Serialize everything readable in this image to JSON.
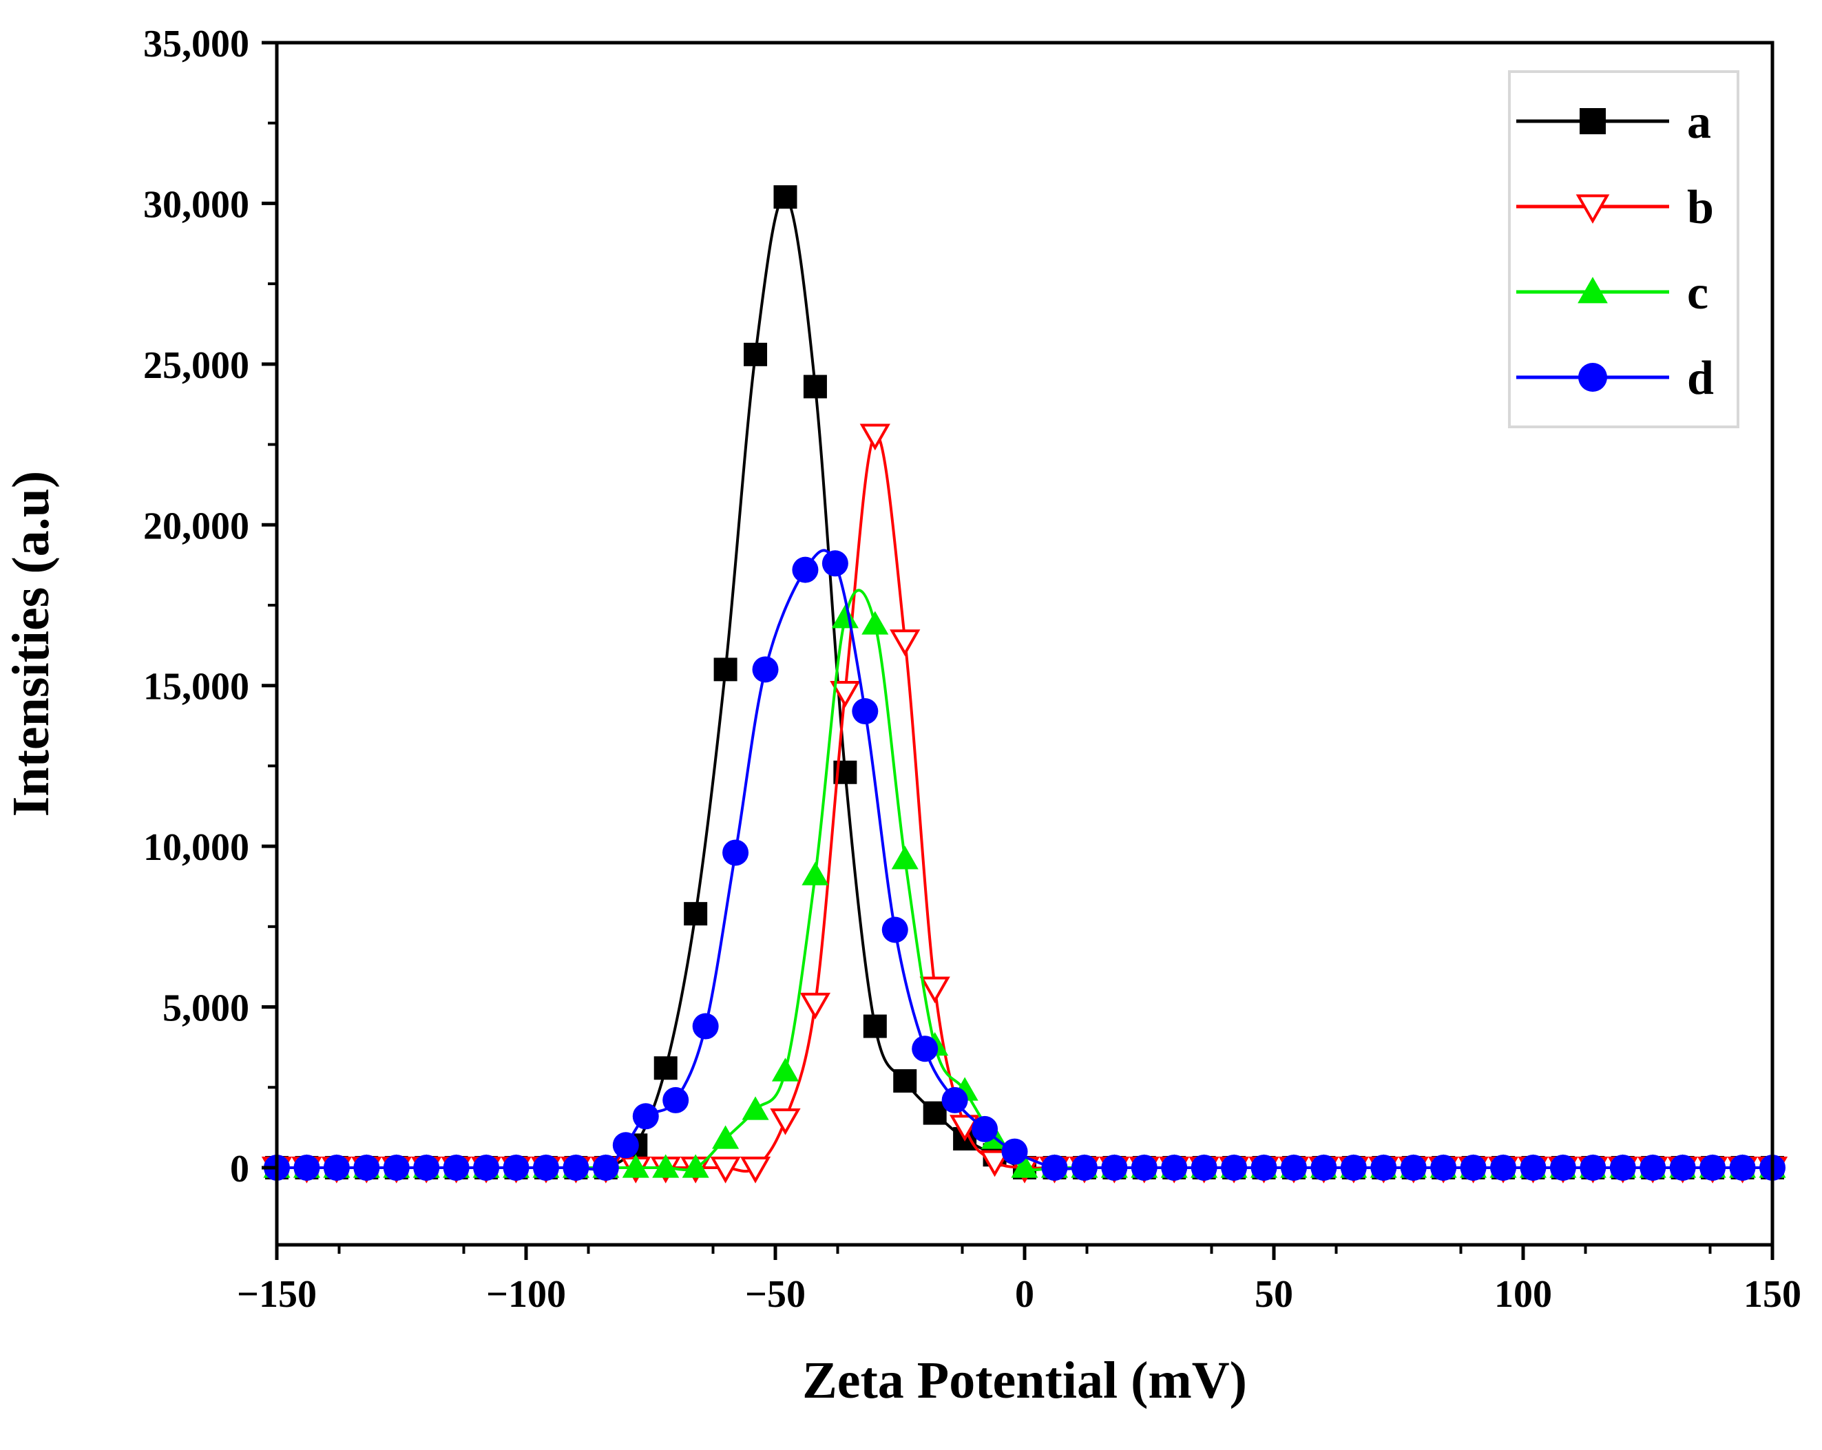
{
  "chart_data": {
    "type": "line",
    "title": "",
    "xlabel": "Zeta Potential (mV)",
    "ylabel": "Intensities (a.u)",
    "xlim": [
      -150,
      150
    ],
    "ylim": [
      -2400,
      35000
    ],
    "xticks": [
      -150,
      -100,
      -50,
      0,
      50,
      100,
      150
    ],
    "xtick_labels": [
      "−150",
      "−100",
      "−50",
      "0",
      "50",
      "100",
      "150"
    ],
    "yticks": [
      0,
      5000,
      10000,
      15000,
      20000,
      25000,
      30000,
      35000
    ],
    "ytick_labels": [
      "0",
      "5,000",
      "10,000",
      "15,000",
      "20,000",
      "25,000",
      "30,000",
      "35,000"
    ],
    "legend_position": "top-right",
    "grid": false,
    "series": [
      {
        "name": "a",
        "color": "#000000",
        "marker": "square",
        "x": [
          -150,
          -144,
          -138,
          -132,
          -126,
          -120,
          -114,
          -108,
          -102,
          -96,
          -90,
          -84,
          -78,
          -72,
          -66,
          -60,
          -54,
          -48,
          -42,
          -36,
          -30,
          -24,
          -18,
          -12,
          -6,
          0,
          6,
          12,
          18,
          24,
          30,
          36,
          42,
          48,
          54,
          60,
          66,
          72,
          78,
          84,
          90,
          96,
          102,
          108,
          114,
          120,
          126,
          132,
          138,
          144,
          150
        ],
        "y": [
          0,
          0,
          0,
          0,
          0,
          0,
          0,
          0,
          0,
          0,
          0,
          0,
          700,
          3100,
          7900,
          15500,
          25300,
          30200,
          24300,
          12300,
          4400,
          2700,
          1700,
          900,
          400,
          0,
          0,
          0,
          0,
          0,
          0,
          0,
          0,
          0,
          0,
          0,
          0,
          0,
          0,
          0,
          0,
          0,
          0,
          0,
          0,
          0,
          0,
          0,
          0,
          0,
          0
        ]
      },
      {
        "name": "b",
        "color": "#ff0000",
        "marker": "triangle-down-open",
        "x": [
          -150,
          -144,
          -138,
          -132,
          -126,
          -120,
          -114,
          -108,
          -102,
          -96,
          -90,
          -84,
          -78,
          -72,
          -66,
          -60,
          -54,
          -48,
          -42,
          -36,
          -30,
          -24,
          -18,
          -12,
          -6,
          0,
          6,
          12,
          18,
          24,
          30,
          36,
          42,
          48,
          54,
          60,
          66,
          72,
          78,
          84,
          90,
          96,
          102,
          108,
          114,
          120,
          126,
          132,
          138,
          144,
          150
        ],
        "y": [
          0,
          0,
          0,
          0,
          0,
          0,
          0,
          0,
          0,
          0,
          0,
          0,
          0,
          0,
          0,
          0,
          0,
          1500,
          5100,
          14800,
          22800,
          16400,
          5600,
          1300,
          200,
          0,
          0,
          0,
          0,
          0,
          0,
          0,
          0,
          0,
          0,
          0,
          0,
          0,
          0,
          0,
          0,
          0,
          0,
          0,
          0,
          0,
          0,
          0,
          0,
          0,
          0
        ]
      },
      {
        "name": "c",
        "color": "#00ee00",
        "marker": "triangle-up",
        "x": [
          -150,
          -144,
          -138,
          -132,
          -126,
          -120,
          -114,
          -108,
          -102,
          -96,
          -90,
          -84,
          -78,
          -72,
          -66,
          -60,
          -54,
          -48,
          -42,
          -36,
          -30,
          -24,
          -18,
          -12,
          -6,
          0,
          6,
          12,
          18,
          24,
          30,
          36,
          42,
          48,
          54,
          60,
          66,
          72,
          78,
          84,
          90,
          96,
          102,
          108,
          114,
          120,
          126,
          132,
          138,
          144,
          150
        ],
        "y": [
          0,
          0,
          0,
          0,
          0,
          0,
          0,
          0,
          0,
          0,
          0,
          0,
          0,
          0,
          0,
          900,
          1800,
          3000,
          9100,
          17100,
          16900,
          9600,
          3800,
          2400,
          900,
          0,
          0,
          0,
          0,
          0,
          0,
          0,
          0,
          0,
          0,
          0,
          0,
          0,
          0,
          0,
          0,
          0,
          0,
          0,
          0,
          0,
          0,
          0,
          0,
          0,
          0
        ]
      },
      {
        "name": "d",
        "color": "#0000ff",
        "marker": "circle",
        "x": [
          -150,
          -144,
          -138,
          -132,
          -126,
          -120,
          -114,
          -108,
          -102,
          -96,
          -90,
          -84,
          -80,
          -76,
          -70,
          -64,
          -58,
          -52,
          -44,
          -38,
          -32,
          -26,
          -20,
          -14,
          -8,
          -2,
          6,
          12,
          18,
          24,
          30,
          36,
          42,
          48,
          54,
          60,
          66,
          72,
          78,
          84,
          90,
          96,
          102,
          108,
          114,
          120,
          126,
          132,
          138,
          144,
          150
        ],
        "y": [
          0,
          0,
          0,
          0,
          0,
          0,
          0,
          0,
          0,
          0,
          0,
          0,
          700,
          1600,
          2100,
          4400,
          9800,
          15500,
          18600,
          18800,
          14200,
          7400,
          3700,
          2100,
          1200,
          500,
          0,
          0,
          0,
          0,
          0,
          0,
          0,
          0,
          0,
          0,
          0,
          0,
          0,
          0,
          0,
          0,
          0,
          0,
          0,
          0,
          0,
          0,
          0,
          0,
          0
        ]
      }
    ]
  }
}
